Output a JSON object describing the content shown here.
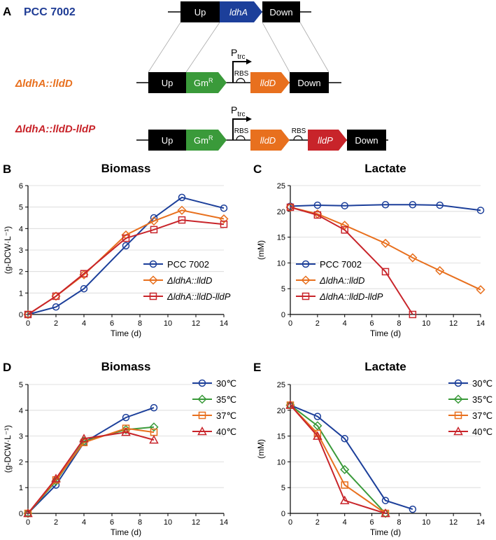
{
  "panel_labels": {
    "A": "A",
    "B": "B",
    "C": "C",
    "D": "D",
    "E": "E"
  },
  "colors": {
    "blue": "#1c3f9a",
    "orange": "#e8701e",
    "red": "#c8242a",
    "green": "#3a9a3a",
    "darkblue_text": "#1f3c95",
    "grid": "#d6d6d6"
  },
  "diagram": {
    "strains": [
      {
        "name": "PCC 7002"
      },
      {
        "name": "ΔldhA::lldD"
      },
      {
        "name": "ΔldhA::lldD-lldP"
      }
    ],
    "genes": {
      "up": "Up",
      "down": "Down",
      "ldhA": "ldhA",
      "gm": "Gm",
      "gm_sup": "R",
      "lldD": "lldD",
      "lldP": "lldP",
      "promoter": "P",
      "promoter_sub": "trc",
      "rbs": "RBS"
    }
  },
  "chart_data": [
    {
      "panel": "B",
      "type": "line",
      "title": "Biomass",
      "xlabel": "Time (d)",
      "ylabel": "(g-DCW·L⁻¹)",
      "xlim": [
        0,
        14
      ],
      "ylim": [
        0,
        6
      ],
      "xticks": [
        "0",
        "2",
        "4",
        "6",
        "8",
        "10",
        "12",
        "14"
      ],
      "yticks": [
        "0",
        "1",
        "2",
        "3",
        "4",
        "5",
        "6"
      ],
      "legend_position": "center-right",
      "series": [
        {
          "name": "PCC 7002",
          "italic": false,
          "color": "#1c3f9a",
          "marker": "circle",
          "x": [
            0,
            2,
            4,
            7,
            9,
            11,
            14
          ],
          "y": [
            0,
            0.35,
            1.2,
            3.2,
            4.5,
            5.45,
            4.95
          ]
        },
        {
          "name": "ΔldhA::lldD",
          "italic": true,
          "color": "#e8701e",
          "marker": "diamond",
          "x": [
            0,
            2,
            4,
            7,
            9,
            11,
            14
          ],
          "y": [
            0,
            0.85,
            1.85,
            3.7,
            4.35,
            4.85,
            4.45
          ]
        },
        {
          "name": "ΔldhA::lldD-lldP",
          "italic": true,
          "color": "#c8242a",
          "marker": "square",
          "x": [
            0,
            2,
            4,
            7,
            9,
            11,
            14
          ],
          "y": [
            0,
            0.85,
            1.9,
            3.55,
            3.95,
            4.4,
            4.2
          ]
        }
      ]
    },
    {
      "panel": "C",
      "type": "line",
      "title": "Lactate",
      "xlabel": "Time (d)",
      "ylabel": "(mM)",
      "xlim": [
        0,
        14
      ],
      "ylim": [
        0,
        25
      ],
      "xticks": [
        "0",
        "2",
        "4",
        "6",
        "8",
        "10",
        "12",
        "14"
      ],
      "yticks": [
        "0",
        "5",
        "10",
        "15",
        "20",
        "25"
      ],
      "legend_position": "bottom-left",
      "series": [
        {
          "name": "PCC 7002",
          "italic": false,
          "color": "#1c3f9a",
          "marker": "circle",
          "x": [
            0,
            2,
            4,
            7,
            9,
            11,
            14
          ],
          "y": [
            21,
            21.2,
            21.1,
            21.3,
            21.3,
            21.2,
            20.2
          ]
        },
        {
          "name": "ΔldhA::lldD",
          "italic": true,
          "color": "#e8701e",
          "marker": "diamond",
          "x": [
            0,
            2,
            4,
            7,
            9,
            11,
            14
          ],
          "y": [
            20.8,
            19.5,
            17.3,
            13.8,
            11,
            8.5,
            4.8
          ]
        },
        {
          "name": "ΔldhA::lldD-lldP",
          "italic": true,
          "color": "#c8242a",
          "marker": "square",
          "x": [
            0,
            2,
            4,
            7,
            9
          ],
          "y": [
            20.8,
            19.3,
            16.4,
            8.3,
            0
          ]
        }
      ]
    },
    {
      "panel": "D",
      "type": "line",
      "title": "Biomass",
      "xlabel": "Time (d)",
      "ylabel": "(g-DCW·L⁻¹)",
      "xlim": [
        0,
        14
      ],
      "ylim": [
        0,
        5
      ],
      "xticks": [
        "0",
        "2",
        "4",
        "6",
        "8",
        "10",
        "12",
        "14"
      ],
      "yticks": [
        "0",
        "1",
        "2",
        "3",
        "4",
        "5"
      ],
      "legend_position": "top-right",
      "series": [
        {
          "name": "30℃",
          "italic": false,
          "color": "#1c3f9a",
          "marker": "circle",
          "x": [
            0,
            2,
            4,
            7,
            9
          ],
          "y": [
            0,
            1.1,
            2.75,
            3.72,
            4.1
          ]
        },
        {
          "name": "35℃",
          "italic": false,
          "color": "#3a9a3a",
          "marker": "diamond",
          "x": [
            0,
            2,
            4,
            7,
            9
          ],
          "y": [
            0,
            1.25,
            2.8,
            3.25,
            3.35
          ]
        },
        {
          "name": "37℃",
          "italic": false,
          "color": "#e8701e",
          "marker": "square",
          "x": [
            0,
            2,
            4,
            7,
            9
          ],
          "y": [
            0,
            1.3,
            2.75,
            3.3,
            3.15
          ]
        },
        {
          "name": "40℃",
          "italic": false,
          "color": "#c8242a",
          "marker": "triangle",
          "x": [
            0,
            2,
            4,
            7,
            9
          ],
          "y": [
            0,
            1.35,
            2.9,
            3.15,
            2.85
          ]
        }
      ]
    },
    {
      "panel": "E",
      "type": "line",
      "title": "Lactate",
      "xlabel": "Time (d)",
      "ylabel": "(mM)",
      "xlim": [
        0,
        14
      ],
      "ylim": [
        0,
        25
      ],
      "xticks": [
        "0",
        "2",
        "4",
        "6",
        "8",
        "10",
        "12",
        "14"
      ],
      "yticks": [
        "0",
        "5",
        "10",
        "15",
        "20",
        "25"
      ],
      "legend_position": "top-right",
      "series": [
        {
          "name": "30℃",
          "italic": false,
          "color": "#1c3f9a",
          "marker": "circle",
          "x": [
            0,
            2,
            4,
            7,
            9
          ],
          "y": [
            21,
            18.8,
            14.5,
            2.5,
            0.8
          ]
        },
        {
          "name": "35℃",
          "italic": false,
          "color": "#3a9a3a",
          "marker": "diamond",
          "x": [
            0,
            2,
            4,
            7
          ],
          "y": [
            21,
            17,
            8.5,
            0
          ]
        },
        {
          "name": "37℃",
          "italic": false,
          "color": "#e8701e",
          "marker": "square",
          "x": [
            0,
            2,
            4,
            7
          ],
          "y": [
            21,
            15.5,
            5.5,
            0
          ]
        },
        {
          "name": "40℃",
          "italic": false,
          "color": "#c8242a",
          "marker": "triangle",
          "x": [
            0,
            2,
            4,
            7
          ],
          "y": [
            21,
            15,
            2.5,
            0
          ]
        }
      ]
    }
  ]
}
